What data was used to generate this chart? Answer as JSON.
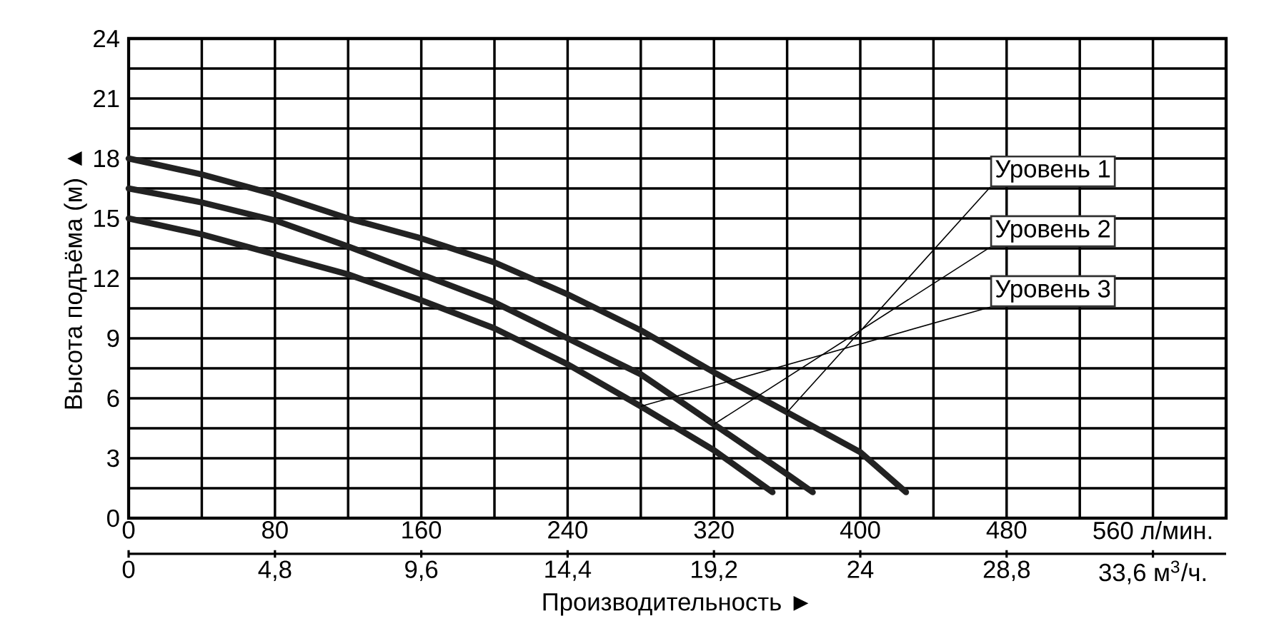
{
  "chart_data": {
    "type": "line",
    "xlabel": "Производительность ►",
    "ylabel": "Высота подъёма (м) ▲",
    "xlim": [
      0,
      600
    ],
    "xticks": [
      0,
      80,
      160,
      240,
      320,
      400,
      480,
      {
        "value": 560,
        "label": "560 л/мин."
      }
    ],
    "x2lim": [
      0,
      36
    ],
    "x2ticks": [
      0,
      {
        "value": 4.8,
        "label": "4,8"
      },
      {
        "value": 9.6,
        "label": "9,6"
      },
      {
        "value": 14.4,
        "label": "14,4"
      },
      {
        "value": 19.2,
        "label": "19,2"
      },
      24,
      {
        "value": 28.8,
        "label": "28,8"
      },
      {
        "value": 33.6,
        "label": "33,6 м$^{3}$/ч."
      }
    ],
    "ylim": [
      0,
      24
    ],
    "yticks": [
      0,
      3,
      6,
      9,
      12,
      15,
      18,
      21,
      24
    ],
    "grid": true,
    "legend": false,
    "marker": "none",
    "line_style": "solid",
    "series": [
      {
        "name": "Уровень 1",
        "color": "#222222",
        "x": [
          0,
          40,
          80,
          120,
          160,
          200,
          240,
          280,
          320,
          360,
          400,
          425
        ],
        "values": [
          18,
          17.2,
          16.2,
          15,
          14,
          12.8,
          11.2,
          9.4,
          7.3,
          5.3,
          3.3,
          1.3
        ]
      },
      {
        "name": "Уровень 2",
        "color": "#222222",
        "x": [
          0,
          40,
          80,
          120,
          160,
          200,
          240,
          280,
          320,
          360,
          374
        ],
        "values": [
          16.5,
          15.8,
          14.9,
          13.6,
          12.2,
          10.8,
          9,
          7.2,
          4.7,
          2.2,
          1.3
        ]
      },
      {
        "name": "Уровень 3",
        "color": "#222222",
        "x": [
          0,
          40,
          80,
          120,
          160,
          200,
          240,
          280,
          320,
          352
        ],
        "values": [
          15,
          14.2,
          13.2,
          12.2,
          10.9,
          9.5,
          7.7,
          5.6,
          3.4,
          1.3
        ]
      }
    ]
  }
}
